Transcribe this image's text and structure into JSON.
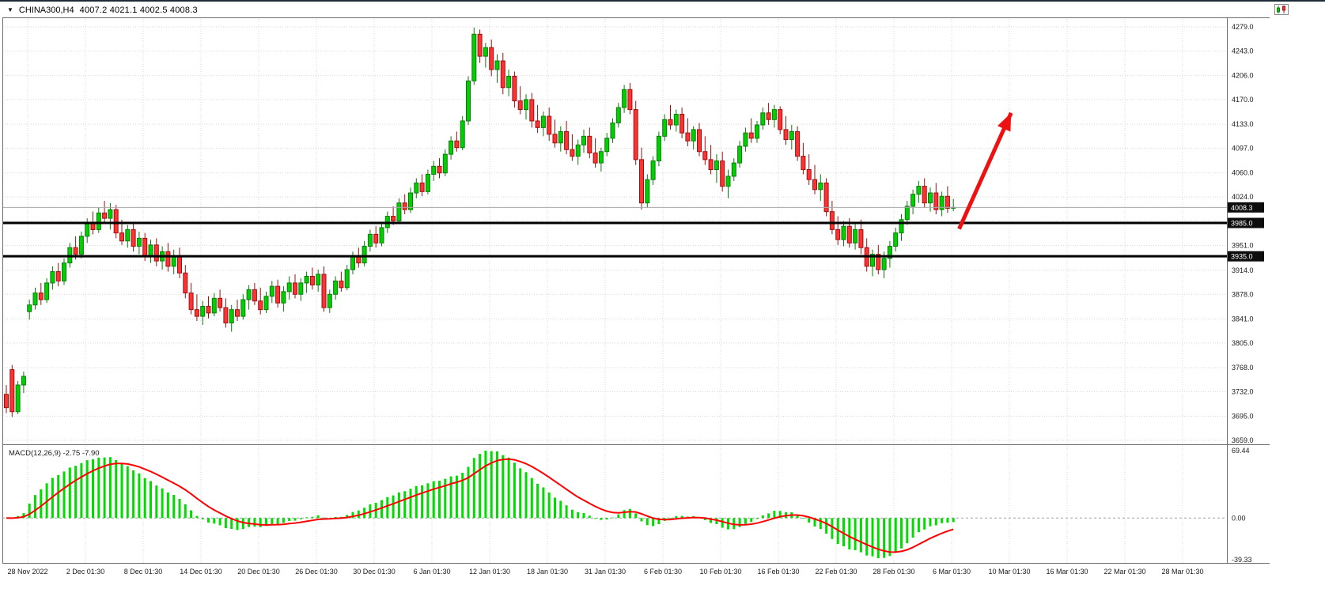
{
  "title_bar": {
    "symbol_marker": "▼",
    "symbol": "CHINA300,H4",
    "ohlc_text": "4007.2 4021.1 4002.5 4008.3"
  },
  "chart_data": {
    "type": "candlestick",
    "symbol": "CHINA300",
    "timeframe": "H4",
    "title": "CHINA300,H4",
    "current_bar": {
      "open": 4007.2,
      "high": 4021.1,
      "low": 4002.5,
      "close": 4008.3
    },
    "price_axis": {
      "top": 4279.0,
      "bottom": 3659.0,
      "ticks": [
        "4279.0",
        "4243.0",
        "4206.0",
        "4170.0",
        "4133.0",
        "4097.0",
        "4060.0",
        "4024.0",
        "3988.0",
        "3951.0",
        "3914.0",
        "3878.0",
        "3841.0",
        "3805.0",
        "3768.0",
        "3732.0",
        "3695.0",
        "3659.0"
      ]
    },
    "time_axis": {
      "labels": [
        "28 Nov 2022",
        "2 Dec 01:30",
        "8 Dec 01:30",
        "14 Dec 01:30",
        "20 Dec 01:30",
        "26 Dec 01:30",
        "30 Dec 01:30",
        "6 Jan 01:30",
        "12 Jan 01:30",
        "18 Jan 01:30",
        "31 Jan 01:30",
        "6 Feb 01:30",
        "10 Feb 01:30",
        "16 Feb 01:30",
        "22 Feb 01:30",
        "28 Feb 01:30",
        "6 Mar 01:30",
        "10 Mar 01:30",
        "16 Mar 01:30",
        "22 Mar 01:30",
        "28 Mar 01:30"
      ]
    },
    "horizontal_lines": [
      {
        "price": 3985.0,
        "label": "3985.0"
      },
      {
        "price": 3935.0,
        "label": "3935.0"
      }
    ],
    "current_price_line": {
      "price": 4008.3,
      "label": "4008.3"
    },
    "trend_arrow": {
      "from_bar": 165,
      "from_price": 3976,
      "to_bar": 174,
      "to_price": 4150
    },
    "macd": {
      "label": "MACD(12,26,9)",
      "value": -2.75,
      "signal": -7.9,
      "values_text": "-2.75 -7.90",
      "fast": 12,
      "slow": 26,
      "signal_period": 9,
      "axis_labels": {
        "max": "69.44",
        "zero": "0.00",
        "min": "-39.33"
      }
    },
    "colors": {
      "up": "#00D000",
      "up_border": "#0E7A0E",
      "down": "#FE3232",
      "down_border": "#9E1010",
      "grid": "#D8D8D8",
      "hline": "#000000",
      "current_price_line": "#A8A8A8",
      "badge_bg": "#0D0D0D",
      "badge_text": "#FFFFFF",
      "macd_histogram": "#00DC00",
      "macd_signal": "#FF0000",
      "zero_line": "#A0A0A0",
      "arrow": "#ED1111",
      "frame": "#6B6B6B",
      "text": "#1B1B1B"
    },
    "candles_ohlc": [
      [
        3728,
        3742,
        3700,
        3708
      ],
      [
        3765,
        3772,
        3694,
        3702
      ],
      [
        3702,
        3748,
        3698,
        3742
      ],
      [
        3742,
        3762,
        3730,
        3755
      ],
      [
        3852,
        3870,
        3840,
        3862
      ],
      [
        3862,
        3888,
        3855,
        3880
      ],
      [
        3880,
        3895,
        3862,
        3870
      ],
      [
        3870,
        3902,
        3865,
        3895
      ],
      [
        3895,
        3920,
        3885,
        3912
      ],
      [
        3912,
        3925,
        3890,
        3898
      ],
      [
        3898,
        3932,
        3892,
        3925
      ],
      [
        3925,
        3955,
        3918,
        3948
      ],
      [
        3948,
        3965,
        3930,
        3938
      ],
      [
        3938,
        3972,
        3932,
        3965
      ],
      [
        3965,
        3992,
        3955,
        3985
      ],
      [
        3985,
        4002,
        3968,
        3975
      ],
      [
        3975,
        4008,
        3970,
        4000
      ],
      [
        4000,
        4018,
        3985,
        3992
      ],
      [
        3992,
        4015,
        3975,
        4005
      ],
      [
        4005,
        4012,
        3962,
        3970
      ],
      [
        3970,
        3990,
        3952,
        3958
      ],
      [
        3958,
        3982,
        3948,
        3975
      ],
      [
        3975,
        3985,
        3942,
        3950
      ],
      [
        3950,
        3972,
        3938,
        3962
      ],
      [
        3962,
        3970,
        3928,
        3935
      ],
      [
        3935,
        3960,
        3925,
        3952
      ],
      [
        3952,
        3962,
        3920,
        3928
      ],
      [
        3928,
        3950,
        3915,
        3942
      ],
      [
        3942,
        3955,
        3912,
        3920
      ],
      [
        3920,
        3945,
        3908,
        3935
      ],
      [
        3935,
        3948,
        3902,
        3910
      ],
      [
        3910,
        3922,
        3872,
        3880
      ],
      [
        3880,
        3895,
        3848,
        3855
      ],
      [
        3855,
        3878,
        3838,
        3845
      ],
      [
        3845,
        3868,
        3832,
        3860
      ],
      [
        3860,
        3875,
        3842,
        3850
      ],
      [
        3850,
        3880,
        3845,
        3872
      ],
      [
        3872,
        3885,
        3852,
        3858
      ],
      [
        3858,
        3872,
        3828,
        3835
      ],
      [
        3835,
        3862,
        3822,
        3855
      ],
      [
        3855,
        3870,
        3838,
        3845
      ],
      [
        3845,
        3878,
        3840,
        3870
      ],
      [
        3870,
        3892,
        3855,
        3885
      ],
      [
        3885,
        3895,
        3862,
        3868
      ],
      [
        3868,
        3888,
        3848,
        3855
      ],
      [
        3855,
        3882,
        3850,
        3875
      ],
      [
        3875,
        3898,
        3865,
        3890
      ],
      [
        3890,
        3900,
        3858,
        3865
      ],
      [
        3865,
        3890,
        3852,
        3882
      ],
      [
        3882,
        3905,
        3870,
        3895
      ],
      [
        3895,
        3908,
        3872,
        3878
      ],
      [
        3878,
        3902,
        3868,
        3895
      ],
      [
        3895,
        3912,
        3880,
        3905
      ],
      [
        3905,
        3918,
        3885,
        3892
      ],
      [
        3892,
        3915,
        3882,
        3908
      ],
      [
        3908,
        3920,
        3852,
        3858
      ],
      [
        3858,
        3885,
        3850,
        3878
      ],
      [
        3878,
        3905,
        3870,
        3898
      ],
      [
        3898,
        3912,
        3882,
        3888
      ],
      [
        3888,
        3922,
        3884,
        3915
      ],
      [
        3915,
        3942,
        3908,
        3935
      ],
      [
        3935,
        3948,
        3918,
        3925
      ],
      [
        3925,
        3958,
        3920,
        3950
      ],
      [
        3950,
        3975,
        3942,
        3968
      ],
      [
        3968,
        3980,
        3948,
        3955
      ],
      [
        3955,
        3985,
        3950,
        3978
      ],
      [
        3978,
        4002,
        3970,
        3995
      ],
      [
        3995,
        4010,
        3982,
        3988
      ],
      [
        3988,
        4022,
        3984,
        4015
      ],
      [
        4015,
        4028,
        3998,
        4005
      ],
      [
        4005,
        4038,
        4000,
        4030
      ],
      [
        4030,
        4052,
        4022,
        4045
      ],
      [
        4045,
        4058,
        4025,
        4032
      ],
      [
        4032,
        4065,
        4028,
        4058
      ],
      [
        4058,
        4078,
        4048,
        4070
      ],
      [
        4070,
        4082,
        4052,
        4060
      ],
      [
        4060,
        4095,
        4055,
        4088
      ],
      [
        4088,
        4115,
        4080,
        4108
      ],
      [
        4108,
        4122,
        4092,
        4098
      ],
      [
        4098,
        4145,
        4094,
        4138
      ],
      [
        4138,
        4205,
        4132,
        4198
      ],
      [
        4198,
        4278,
        4192,
        4268
      ],
      [
        4268,
        4275,
        4225,
        4235
      ],
      [
        4235,
        4255,
        4218,
        4248
      ],
      [
        4248,
        4260,
        4205,
        4215
      ],
      [
        4215,
        4238,
        4195,
        4228
      ],
      [
        4228,
        4240,
        4178,
        4188
      ],
      [
        4188,
        4215,
        4175,
        4205
      ],
      [
        4205,
        4212,
        4158,
        4168
      ],
      [
        4168,
        4190,
        4148,
        4155
      ],
      [
        4155,
        4178,
        4140,
        4170
      ],
      [
        4170,
        4180,
        4128,
        4138
      ],
      [
        4138,
        4162,
        4120,
        4128
      ],
      [
        4128,
        4152,
        4115,
        4145
      ],
      [
        4145,
        4158,
        4108,
        4118
      ],
      [
        4118,
        4140,
        4098,
        4105
      ],
      [
        4105,
        4130,
        4092,
        4122
      ],
      [
        4122,
        4138,
        4088,
        4095
      ],
      [
        4095,
        4118,
        4078,
        4085
      ],
      [
        4085,
        4110,
        4072,
        4102
      ],
      [
        4102,
        4125,
        4090,
        4115
      ],
      [
        4115,
        4128,
        4082,
        4090
      ],
      [
        4090,
        4112,
        4068,
        4075
      ],
      [
        4075,
        4098,
        4062,
        4092
      ],
      [
        4092,
        4120,
        4085,
        4112
      ],
      [
        4112,
        4142,
        4105,
        4135
      ],
      [
        4135,
        4165,
        4128,
        4158
      ],
      [
        4158,
        4192,
        4150,
        4185
      ],
      [
        4185,
        4195,
        4148,
        4155
      ],
      [
        4155,
        4168,
        4072,
        4080
      ],
      [
        4080,
        4098,
        4005,
        4015
      ],
      [
        4015,
        4058,
        4008,
        4050
      ],
      [
        4050,
        4085,
        4042,
        4078
      ],
      [
        4078,
        4122,
        4070,
        4115
      ],
      [
        4115,
        4148,
        4108,
        4140
      ],
      [
        4140,
        4162,
        4125,
        4132
      ],
      [
        4132,
        4155,
        4122,
        4148
      ],
      [
        4148,
        4158,
        4112,
        4120
      ],
      [
        4120,
        4142,
        4100,
        4108
      ],
      [
        4108,
        4130,
        4095,
        4125
      ],
      [
        4125,
        4135,
        4085,
        4092
      ],
      [
        4092,
        4115,
        4072,
        4080
      ],
      [
        4080,
        4102,
        4058,
        4065
      ],
      [
        4065,
        4088,
        4045,
        4078
      ],
      [
        4078,
        4092,
        4032,
        4040
      ],
      [
        4040,
        4065,
        4022,
        4055
      ],
      [
        4055,
        4082,
        4048,
        4075
      ],
      [
        4075,
        4108,
        4068,
        4100
      ],
      [
        4100,
        4128,
        4092,
        4120
      ],
      [
        4120,
        4142,
        4105,
        4112
      ],
      [
        4112,
        4138,
        4105,
        4132
      ],
      [
        4132,
        4158,
        4125,
        4150
      ],
      [
        4150,
        4165,
        4132,
        4140
      ],
      [
        4140,
        4162,
        4128,
        4155
      ],
      [
        4155,
        4160,
        4118,
        4125
      ],
      [
        4125,
        4145,
        4102,
        4110
      ],
      [
        4110,
        4132,
        4095,
        4122
      ],
      [
        4122,
        4130,
        4078,
        4085
      ],
      [
        4085,
        4105,
        4058,
        4065
      ],
      [
        4065,
        4088,
        4042,
        4050
      ],
      [
        4050,
        4072,
        4028,
        4035
      ],
      [
        4035,
        4058,
        4018,
        4045
      ],
      [
        4045,
        4052,
        3995,
        4002
      ],
      [
        4002,
        4018,
        3968,
        3975
      ],
      [
        3975,
        3995,
        3952,
        3960
      ],
      [
        3960,
        3988,
        3950,
        3980
      ],
      [
        3980,
        3992,
        3948,
        3955
      ],
      [
        3955,
        3985,
        3945,
        3975
      ],
      [
        3975,
        3990,
        3938,
        3948
      ],
      [
        3948,
        3962,
        3912,
        3920
      ],
      [
        3920,
        3945,
        3905,
        3938
      ],
      [
        3938,
        3952,
        3908,
        3915
      ],
      [
        3915,
        3942,
        3902,
        3932
      ],
      [
        3932,
        3958,
        3918,
        3950
      ],
      [
        3950,
        3978,
        3942,
        3970
      ],
      [
        3970,
        3998,
        3958,
        3990
      ],
      [
        3990,
        4018,
        3982,
        4010
      ],
      [
        4010,
        4035,
        3998,
        4028
      ],
      [
        4028,
        4048,
        4015,
        4040
      ],
      [
        4040,
        4052,
        4008,
        4015
      ],
      [
        4015,
        4038,
        4002,
        4030
      ],
      [
        4030,
        4045,
        3998,
        4005
      ],
      [
        4005,
        4032,
        3995,
        4025
      ],
      [
        4025,
        4040,
        4000,
        4007
      ],
      [
        4007.2,
        4021.1,
        4002.5,
        4008.3
      ]
    ]
  }
}
